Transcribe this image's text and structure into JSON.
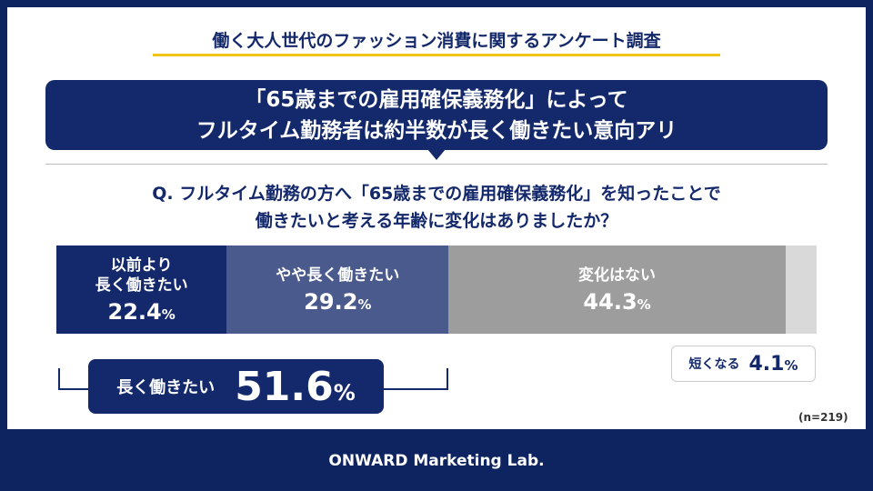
{
  "header": {
    "title": "働く大人世代のファッション消費に関するアンケート調査"
  },
  "headline": {
    "lines": [
      "「65歳までの雇用確保義務化」によって",
      "フルタイム勤務者は約半数が長く働きたい意向アリ"
    ]
  },
  "chart_data": {
    "type": "stacked_bar",
    "title": [
      "Q. フルタイム勤務の方へ「65歳までの雇用確保義務化」を知ったことで",
      "働きたいと考える年齢に変化はありましたか？"
    ],
    "unit": "%",
    "xlim": [
      0,
      100
    ],
    "series": [
      {
        "name": "以前より\n長く働きたい",
        "color": "#14296b",
        "values": [
          22.4
        ]
      },
      {
        "name": "やや長く働きたい",
        "color": "#4a5a8c",
        "values": [
          29.2
        ]
      },
      {
        "name": "変化はない",
        "color": "#9d9d9d",
        "values": [
          44.3
        ]
      },
      {
        "name": "短くなる",
        "color": "#d9d9d9",
        "values": [
          4.1
        ]
      }
    ],
    "summary": {
      "label": "長く働きたい",
      "value": 51.6
    },
    "note": "(n=219)"
  },
  "footer": {
    "brand": "ONWARD Marketing Lab."
  }
}
